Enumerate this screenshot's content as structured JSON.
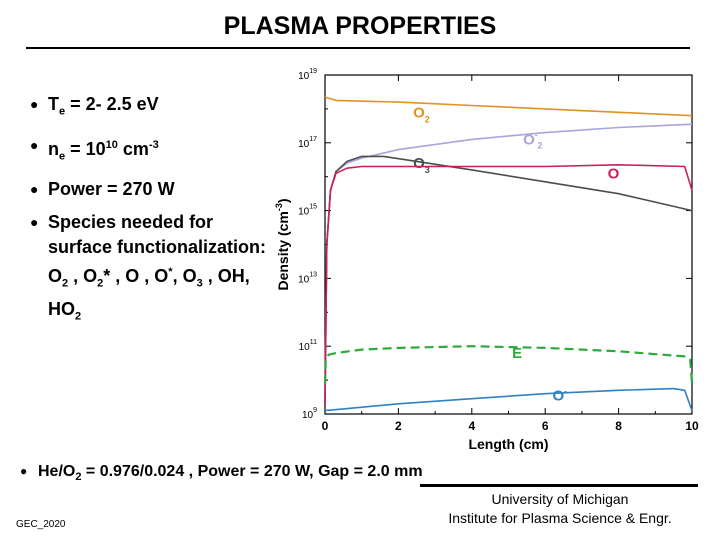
{
  "slide": {
    "title": "PLASMA PROPERTIES",
    "bullets": [
      {
        "pre": "T",
        "sub": "e",
        "post": " = 2- 2.5 eV"
      },
      {
        "pre": "n",
        "sub": "e",
        "mid": " = 10",
        "sup": "10",
        "post": " cm",
        "sup2": "-3"
      },
      {
        "pre": "Power = 270 W"
      },
      {
        "pre": "Species needed for surface functionalization: O",
        "sub": "2",
        "post": " , O",
        "sub2": "2",
        "post2": "* , O , O",
        "sup": "*",
        "post3": ", O",
        "sub3": "3",
        "post4": " , OH, HO",
        "sub4": "2"
      }
    ],
    "bullet_symbol": "●",
    "footnote": {
      "pre": "He/O",
      "sub": "2",
      "post": " = 0.976/0.024 , Power = 270 W, Gap = 2.0 mm"
    },
    "code": "GEC_2020",
    "affiliation": {
      "line1": "University of Michigan",
      "line2": "Institute for Plasma Science & Engr."
    }
  },
  "chart_data": {
    "type": "line",
    "xlabel": "Length (cm)",
    "ylabel": "Density (cm",
    "ylabel_sup": "-3",
    "ylabel_close": ")",
    "xlim": [
      0,
      10
    ],
    "ylim_log10": [
      9,
      19
    ],
    "y_scale": "log",
    "x_ticks": [
      0,
      2,
      4,
      6,
      8,
      10
    ],
    "y_ticks": [
      {
        "base": "10",
        "exp": "19"
      },
      {
        "base": "10",
        "exp": "17"
      },
      {
        "base": "10",
        "exp": "15"
      },
      {
        "base": "10",
        "exp": "13"
      },
      {
        "base": "10",
        "exp": "11"
      },
      {
        "base": "10",
        "exp": "9"
      }
    ],
    "y_tick_values_log10": [
      19,
      17,
      15,
      13,
      11,
      9
    ],
    "grid": false,
    "series": [
      {
        "name": "O",
        "sub": "2",
        "sup": "",
        "color": "#e39024",
        "dashed": false,
        "x": [
          0,
          0.3,
          2,
          4,
          6,
          8,
          10
        ],
        "log10": [
          18.35,
          18.25,
          18.2,
          18.1,
          18.0,
          17.9,
          17.8
        ],
        "label_pos": {
          "x": 2.4,
          "y": 17.75
        }
      },
      {
        "name": "O",
        "sub": "2",
        "sup": "-",
        "color": "#a6a6dc",
        "dashed": false,
        "x": [
          0,
          0.05,
          0.15,
          0.3,
          0.6,
          1,
          2,
          4,
          6,
          8,
          10
        ],
        "log10": [
          9.3,
          14,
          15.6,
          16.15,
          16.4,
          16.55,
          16.8,
          17.1,
          17.3,
          17.45,
          17.55
        ],
        "label_pos": {
          "x": 5.4,
          "y": 16.95
        }
      },
      {
        "name": "O",
        "sub": "3",
        "sup": "",
        "color": "#4d4d4d",
        "dashed": false,
        "x": [
          0,
          0.05,
          0.15,
          0.3,
          0.6,
          1.0,
          1.6,
          2.5,
          4,
          6,
          8,
          10
        ],
        "log10": [
          9.3,
          14,
          15.6,
          16.15,
          16.45,
          16.6,
          16.6,
          16.45,
          16.2,
          15.85,
          15.5,
          15.0
        ],
        "label_pos": {
          "x": 2.4,
          "y": 16.25
        }
      },
      {
        "name": "O",
        "sub": "",
        "sup": "",
        "color": "#cc1f55",
        "dashed": false,
        "x": [
          0,
          0.05,
          0.15,
          0.3,
          0.6,
          1.0,
          2,
          4,
          6,
          8,
          9.8,
          10
        ],
        "log10": [
          9.3,
          14,
          15.6,
          16.1,
          16.25,
          16.3,
          16.3,
          16.3,
          16.3,
          16.35,
          16.3,
          15.6
        ],
        "label_pos": {
          "x": 7.7,
          "y": 15.95
        }
      },
      {
        "name": "E",
        "sub": "",
        "sup": "",
        "color": "#2eaa3c",
        "dashed": true,
        "x": [
          0,
          0.02,
          0.1,
          0.3,
          1,
          2,
          4,
          6,
          8,
          9.8,
          9.95,
          10
        ],
        "log10": [
          9.9,
          10.6,
          10.75,
          10.8,
          10.9,
          10.95,
          11.0,
          10.95,
          10.85,
          10.7,
          10.6,
          9.9
        ],
        "label_pos": {
          "x": 5.1,
          "y": 10.65
        }
      },
      {
        "name": "O",
        "sub": "",
        "sup": "-",
        "color": "#2f80c8",
        "dashed": false,
        "x": [
          0,
          0.5,
          2,
          4,
          6,
          8,
          9.5,
          9.8,
          10
        ],
        "log10": [
          9.1,
          9.15,
          9.3,
          9.45,
          9.6,
          9.7,
          9.75,
          9.7,
          9.1
        ],
        "label_pos": {
          "x": 6.2,
          "y": 9.4
        }
      }
    ]
  }
}
